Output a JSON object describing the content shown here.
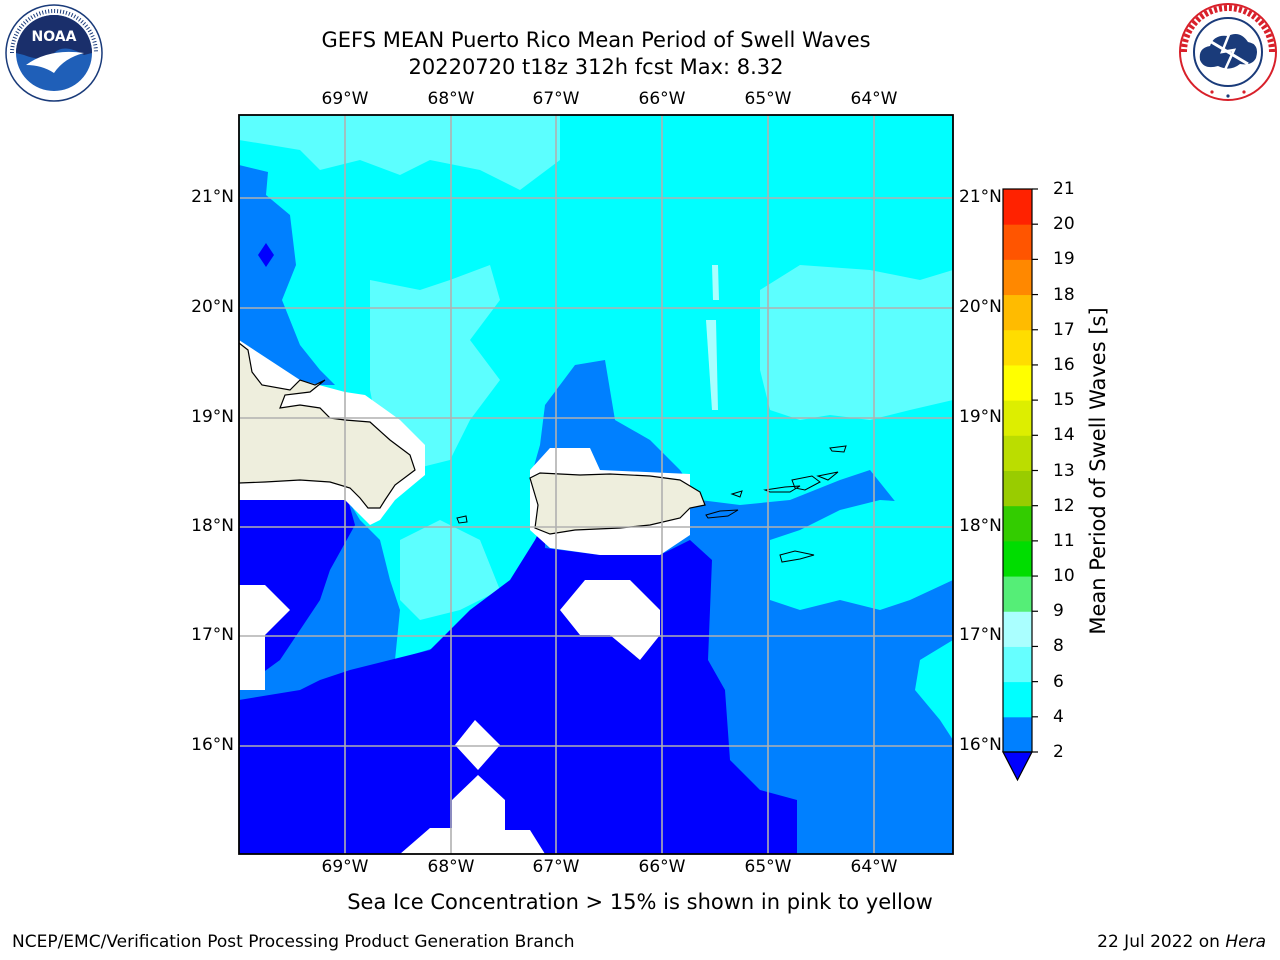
{
  "title_line1": "GEFS MEAN Puerto Rico Mean Period of Swell Waves",
  "title_line2": "20220720 t18z 312h fcst   Max: 8.32",
  "logos": {
    "left": "noaa-logo",
    "right": "national-weather-service-logo"
  },
  "map": {
    "lon_ticks": [
      "69°W",
      "68°W",
      "67°W",
      "66°W",
      "65°W",
      "64°W"
    ],
    "lat_ticks": [
      "21°N",
      "20°N",
      "19°N",
      "18°N",
      "17°N",
      "16°N"
    ],
    "land_color": "#eeeedd",
    "grid_color": "#b0b0b0"
  },
  "colorbar": {
    "label": "Mean Period of Swell Waves [s]",
    "levels": [
      2,
      4,
      6,
      8,
      9,
      10,
      11,
      12,
      13,
      14,
      15,
      16,
      17,
      18,
      19,
      20,
      21
    ],
    "tick_labels": [
      "2",
      "4",
      "6",
      "8",
      "9",
      "10",
      "11",
      "12",
      "13",
      "14",
      "15",
      "16",
      "17",
      "18",
      "19",
      "20",
      "21"
    ],
    "colors": [
      "#0080ff",
      "#00ffff",
      "#66ffff",
      "#aaffff",
      "#55ee77",
      "#00dd00",
      "#33cc00",
      "#99cc00",
      "#bbdd00",
      "#ddee00",
      "#ffff00",
      "#ffdd00",
      "#ffbb00",
      "#ff8800",
      "#ff5500",
      "#ff2200"
    ],
    "under_color": "#0000ff"
  },
  "caption": "Sea Ice Concentration > 15% is shown in pink to yellow",
  "footer_left": "NCEP/EMC/Verification Post Processing Product Generation Branch",
  "footer_date": "22 Jul 2022 on ",
  "footer_host": "Hera"
}
